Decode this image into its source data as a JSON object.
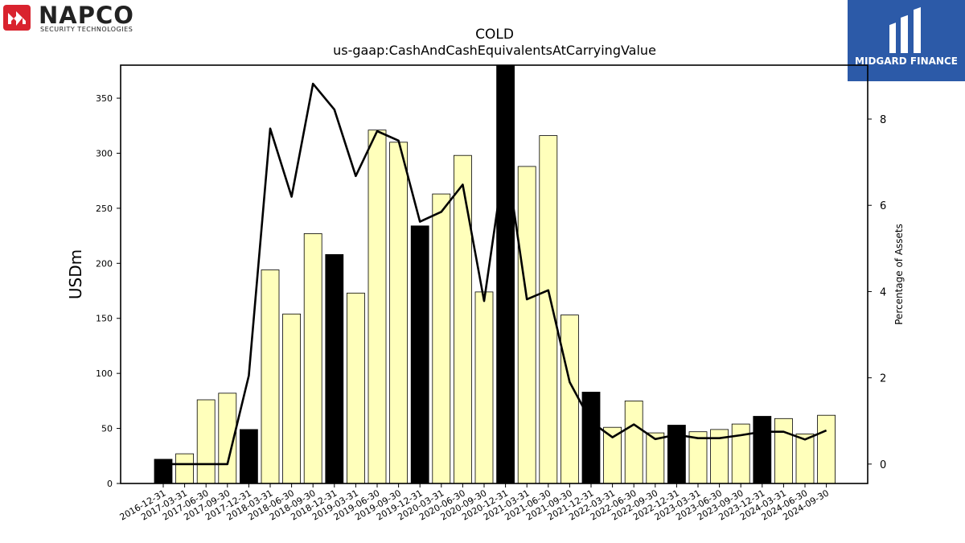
{
  "logos": {
    "left": {
      "name": "NAPCO",
      "tagline": "SECURITY TECHNOLOGIES",
      "icon": "napco-mark-icon",
      "color": "#d9232e"
    },
    "right": {
      "name": "MIDGARD FINANCE",
      "icon": "midgard-mark-icon",
      "color": "#2c5aa8"
    }
  },
  "chart_data": {
    "type": "bar",
    "title": "COLD",
    "subtitle": "us-gaap:CashAndCashEquivalentsAtCarryingValue",
    "ylabel": "USDm",
    "y2label": "Percentage of Assets",
    "ylim": [
      0,
      380
    ],
    "y2lim": [
      -0.45,
      9.25
    ],
    "yticks": [
      0,
      50,
      100,
      150,
      200,
      250,
      300,
      350
    ],
    "y2ticks": [
      0,
      2,
      4,
      6,
      8
    ],
    "grid": false,
    "categories": [
      "2016-12-31",
      "2017-03-31",
      "2017-06-30",
      "2017-09-30",
      "2017-12-31",
      "2018-03-31",
      "2018-06-30",
      "2018-09-30",
      "2018-12-31",
      "2019-03-31",
      "2019-06-30",
      "2019-09-30",
      "2019-12-31",
      "2020-03-31",
      "2020-06-30",
      "2020-09-30",
      "2020-12-31",
      "2021-03-31",
      "2021-06-30",
      "2021-09-30",
      "2021-12-31",
      "2022-03-31",
      "2022-06-30",
      "2022-09-30",
      "2022-12-31",
      "2023-03-31",
      "2023-06-30",
      "2023-09-30",
      "2023-12-31",
      "2024-03-31",
      "2024-06-30",
      "2024-09-30"
    ],
    "series": [
      {
        "type": "bar",
        "axis": "left",
        "values": [
          22,
          27,
          76,
          82,
          49,
          194,
          154,
          227,
          208,
          173,
          321,
          310,
          234,
          263,
          298,
          174,
          380,
          288,
          316,
          153,
          83,
          51,
          75,
          46,
          53,
          47,
          49,
          54,
          61,
          59,
          45,
          62
        ],
        "colors": [
          "#000000",
          "#ffffbb",
          "#ffffbb",
          "#ffffbb",
          "#000000",
          "#ffffbb",
          "#ffffbb",
          "#ffffbb",
          "#000000",
          "#ffffbb",
          "#ffffbb",
          "#ffffbb",
          "#000000",
          "#ffffbb",
          "#ffffbb",
          "#ffffbb",
          "#000000",
          "#ffffbb",
          "#ffffbb",
          "#ffffbb",
          "#000000",
          "#ffffbb",
          "#ffffbb",
          "#ffffbb",
          "#000000",
          "#ffffbb",
          "#ffffbb",
          "#ffffbb",
          "#000000",
          "#ffffbb",
          "#ffffbb",
          "#ffffbb"
        ]
      },
      {
        "type": "line",
        "axis": "right",
        "color": "#000000",
        "values": [
          0.0,
          0.0,
          0.0,
          0.0,
          2.05,
          7.78,
          6.2,
          8.82,
          8.22,
          6.68,
          7.72,
          7.5,
          5.62,
          5.85,
          6.48,
          3.78,
          7.22,
          3.82,
          4.03,
          1.9,
          0.98,
          0.62,
          0.92,
          0.58,
          0.68,
          0.6,
          0.6,
          0.67,
          0.75,
          0.75,
          0.57,
          0.78
        ]
      }
    ]
  }
}
